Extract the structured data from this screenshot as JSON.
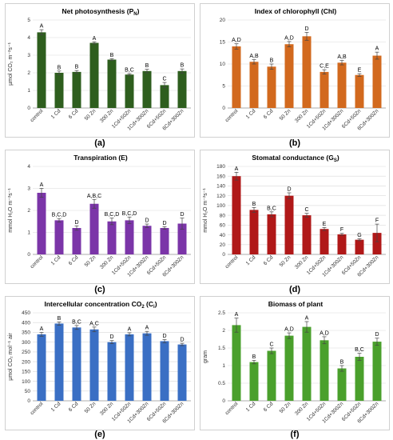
{
  "chart_data": [
    {
      "type": "bar",
      "title_main": "Net photosynthesis (P",
      "title_sub": "N",
      "title_end": ")",
      "ylabel": "µmol CO₂ m⁻²s⁻¹",
      "ylim": [
        0,
        5
      ],
      "yticks": [
        "0",
        "1",
        "2",
        "3",
        "4",
        "5"
      ],
      "categories": [
        "control",
        "1 Cd",
        "6 Cd",
        "50 Zn",
        "300 Zn",
        "1Cd+50Zn",
        "1Cd+300Zn",
        "6Cd+50Zn",
        "6Cd+300Zn"
      ],
      "values": [
        4.3,
        2.0,
        2.05,
        3.7,
        2.75,
        1.9,
        2.1,
        1.3,
        2.1
      ],
      "errors": [
        0.15,
        0.1,
        0.08,
        0.06,
        0.05,
        0.05,
        0.1,
        0.15,
        0.12
      ],
      "letters": [
        "A",
        "B",
        "B",
        "A",
        "B",
        "B,C",
        "B",
        "C",
        "B"
      ],
      "color": "#2e5e1e",
      "panel_label": "(a)"
    },
    {
      "type": "bar",
      "title_main": "Index of chlorophyll (Chl)",
      "title_sub": "",
      "title_end": "",
      "ylabel": "",
      "ylim": [
        0,
        20
      ],
      "yticks": [
        "0",
        "5",
        "10",
        "15",
        "20"
      ],
      "categories": [
        "control",
        "1 Cd",
        "6 Cd",
        "50 Zn",
        "300 Zn",
        "1Cd+50Zn",
        "1Cd+300Zn",
        "6Cd+50Zn",
        "6Cd+300Zn"
      ],
      "values": [
        14.0,
        10.5,
        9.4,
        14.5,
        16.3,
        8.2,
        10.3,
        7.5,
        11.9
      ],
      "errors": [
        0.6,
        0.5,
        0.6,
        0.6,
        0.9,
        0.5,
        0.5,
        0.3,
        0.8
      ],
      "letters": [
        "A,D",
        "A,B",
        "B",
        "A,D",
        "D",
        "C,E",
        "A,B",
        "E",
        "A"
      ],
      "color": "#d2691e",
      "panel_label": "(b)"
    },
    {
      "type": "bar",
      "title_main": "Transpiration (E)",
      "title_sub": "",
      "title_end": "",
      "ylabel": "mmol H₂O m⁻²s⁻¹",
      "ylim": [
        0,
        4
      ],
      "yticks": [
        "0",
        "1",
        "2",
        "3",
        "4"
      ],
      "categories": [
        "control",
        "1 Cd",
        "6 Cd",
        "50 Zn",
        "300 Zn",
        "1Cd+50Zn",
        "1Cd+300Zn",
        "6Cd+50Zn",
        "6Cd+300Zn"
      ],
      "values": [
        2.8,
        1.55,
        1.2,
        2.3,
        1.5,
        1.55,
        1.3,
        1.2,
        1.4
      ],
      "errors": [
        0.2,
        0.08,
        0.1,
        0.2,
        0.15,
        0.15,
        0.08,
        0.06,
        0.25
      ],
      "letters": [
        "A",
        "B,C,D",
        "D",
        "A,B,C",
        "B,C,D",
        "B,C,D",
        "D",
        "D",
        "D"
      ],
      "color": "#7b35a8",
      "panel_label": "(c)"
    },
    {
      "type": "bar",
      "title_main": "Stomatal conductance (G",
      "title_sub": "S",
      "title_end": ")",
      "ylabel": "mmol H₂O m⁻²s⁻¹",
      "ylim": [
        0,
        180
      ],
      "yticks": [
        "0",
        "20",
        "40",
        "60",
        "80",
        "100",
        "120",
        "140",
        "160",
        "180"
      ],
      "categories": [
        "control",
        "1 Cd",
        "6 Cd",
        "50 Zn",
        "300 Zn",
        "1Cd+50Zn",
        "1Cd+300Zn",
        "6Cd+50Zn",
        "6Cd+300Zn"
      ],
      "values": [
        160,
        91,
        82,
        120,
        80,
        52,
        41,
        30,
        44
      ],
      "errors": [
        8,
        5,
        5,
        6,
        4,
        3,
        2,
        2,
        18
      ],
      "letters": [
        "A",
        "B",
        "B,C",
        "D",
        "C",
        "E",
        "F",
        "G",
        "F"
      ],
      "color": "#b01818",
      "panel_label": "(d)"
    },
    {
      "type": "bar",
      "title_main": "Intercellular concentration CO",
      "title_sub": "2",
      "title_end": " (C",
      "title_sub2": "i",
      "title_end2": ")",
      "ylabel": "µmol CO₂ mol⁻¹ air",
      "ylim": [
        0,
        450
      ],
      "yticks": [
        "0",
        "50",
        "100",
        "150",
        "200",
        "250",
        "300",
        "350",
        "400",
        "450"
      ],
      "categories": [
        "control",
        "1 Cd",
        "6 Cd",
        "50 Zn",
        "300 Zn",
        "1Cd+50Zn",
        "1Cd+300Zn",
        "6Cd+50Zn",
        "6Cd+300Zn"
      ],
      "values": [
        340,
        395,
        375,
        365,
        300,
        340,
        345,
        305,
        288
      ],
      "errors": [
        10,
        8,
        10,
        12,
        8,
        8,
        10,
        8,
        6
      ],
      "letters": [
        "A",
        "B",
        "B,C",
        "A,C",
        "D",
        "A",
        "A",
        "D",
        "D"
      ],
      "color": "#3a6fc4",
      "panel_label": "(e)"
    },
    {
      "type": "bar",
      "title_main": "Biomass of plant",
      "title_sub": "",
      "title_end": "",
      "ylabel": "gram",
      "ylim": [
        0,
        2.5
      ],
      "yticks": [
        "0",
        "0.5",
        "1",
        "1.5",
        "2",
        "2.5"
      ],
      "categories": [
        "control",
        "1 Cd",
        "6 Cd",
        "50 Zn",
        "300 Zn",
        "1Cd+50Zn",
        "1Cd+300Zn",
        "6Cd+50Zn",
        "6Cd+300Zn"
      ],
      "values": [
        2.15,
        1.1,
        1.42,
        1.85,
        2.1,
        1.72,
        0.92,
        1.25,
        1.68
      ],
      "errors": [
        0.2,
        0.05,
        0.08,
        0.08,
        0.15,
        0.1,
        0.08,
        0.1,
        0.1
      ],
      "letters": [
        "A",
        "B",
        "C",
        "A,D",
        "A",
        "A,D",
        "B",
        "B,C",
        "D"
      ],
      "color": "#4aa02c",
      "panel_label": "(f)"
    }
  ]
}
